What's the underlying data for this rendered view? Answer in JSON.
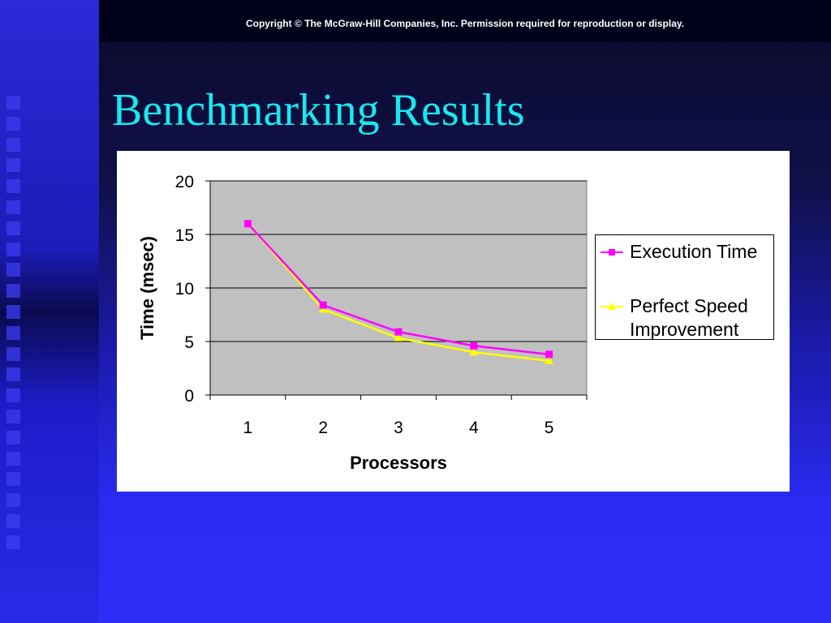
{
  "slide": {
    "copyright": "Copyright © The McGraw-Hill Companies, Inc. Permission required for reproduction or display.",
    "title": "Benchmarking Results"
  },
  "colors": {
    "title": "#19e8f0",
    "plot_bg": "#c0c0c0",
    "execution_series": "#ff00ff",
    "perfect_series": "#ffff00"
  },
  "chart_data": {
    "type": "line",
    "x": [
      1,
      2,
      3,
      4,
      5
    ],
    "categories": [
      "1",
      "2",
      "3",
      "4",
      "5"
    ],
    "series": [
      {
        "name": "Execution Time",
        "values": [
          16,
          8.4,
          5.9,
          4.6,
          3.8
        ],
        "marker": "square"
      },
      {
        "name": "Perfect Speed Improvement",
        "values": [
          16,
          8,
          5.33,
          4,
          3.2
        ],
        "marker": "triangle"
      }
    ],
    "xlabel": "Processors",
    "ylabel": "Time (msec)",
    "ylim": [
      0,
      20
    ],
    "yticks": [
      0,
      5,
      10,
      15,
      20
    ],
    "grid": true,
    "legend": "right"
  }
}
